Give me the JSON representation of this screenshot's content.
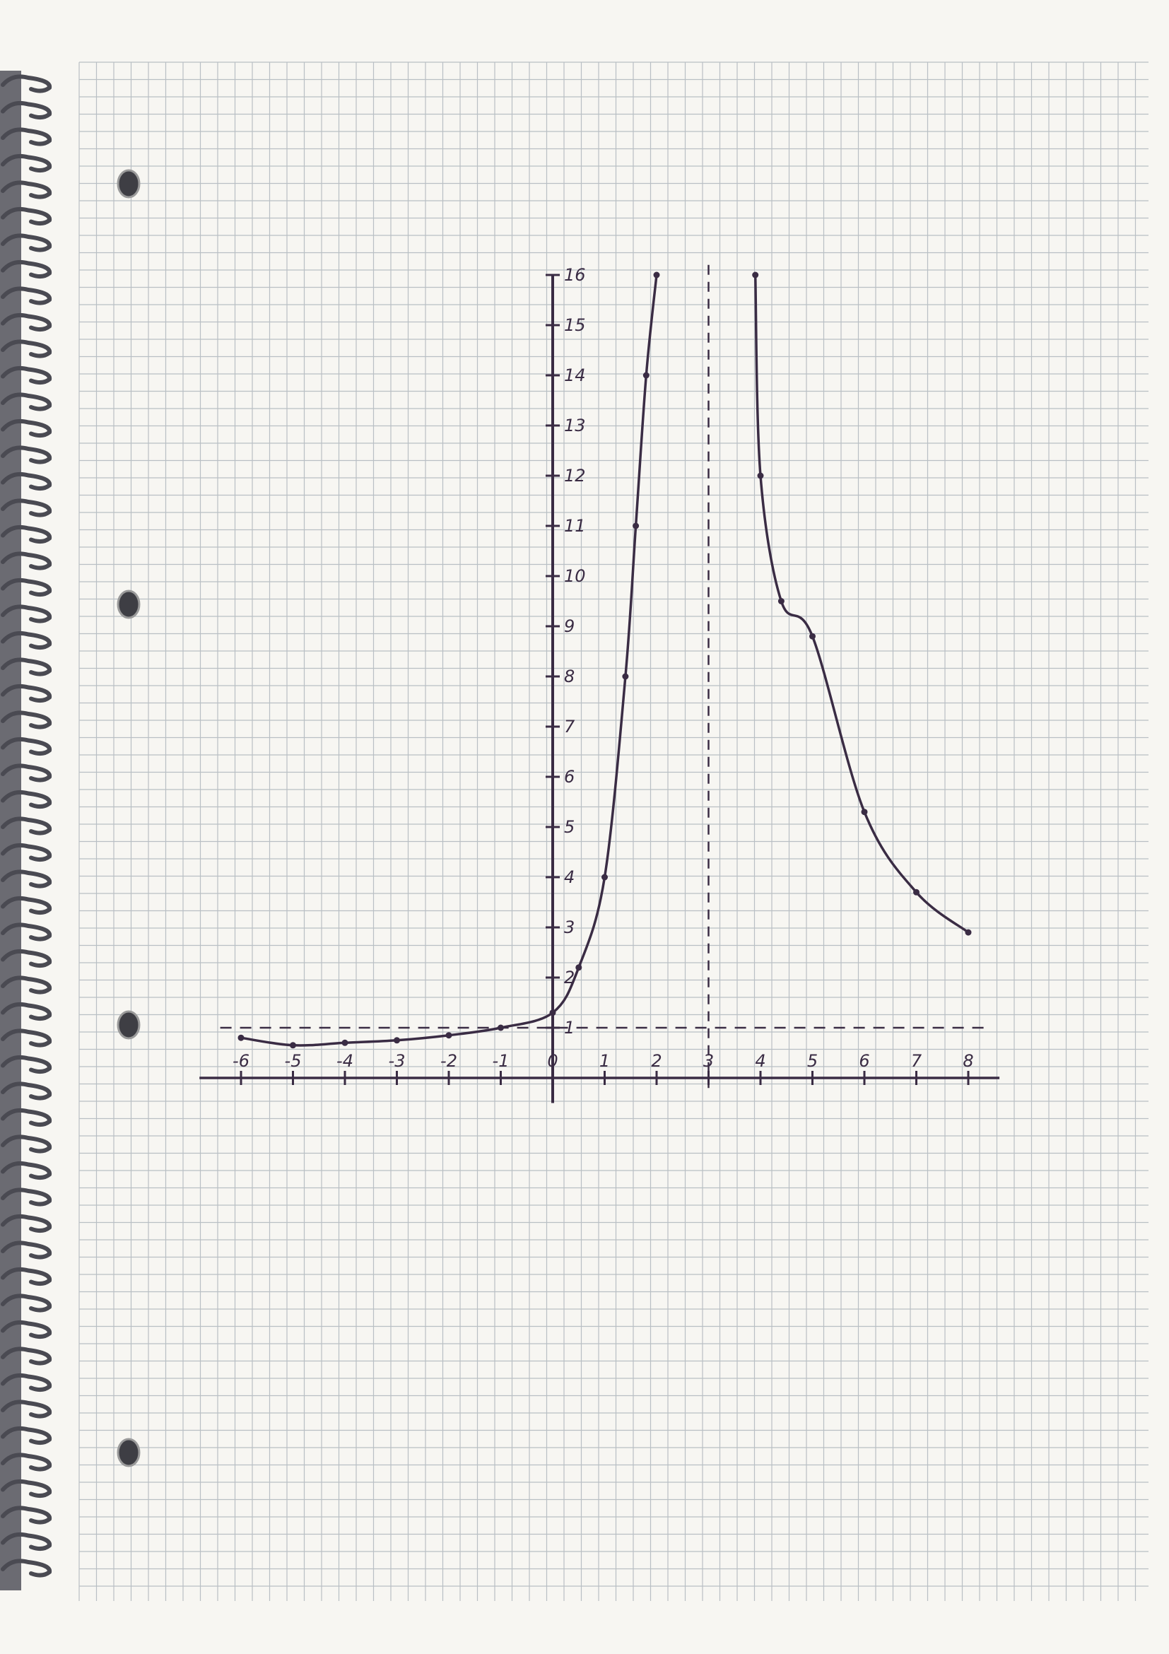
{
  "colors": {
    "paper": "#f7f6f2",
    "grid": "#b9bfc4",
    "ink": "#3a2c44",
    "spiral": "#4a4a52"
  },
  "chart_data": {
    "type": "line",
    "title": "",
    "xlabel": "",
    "ylabel": "",
    "grid": true,
    "xlim": [
      -6,
      8
    ],
    "ylim": [
      0,
      16
    ],
    "x_ticks": [
      "-6",
      "-5",
      "-4",
      "-3",
      "-2",
      "-1",
      "0",
      "1",
      "2",
      "3",
      "4",
      "5",
      "6",
      "7",
      "8"
    ],
    "x_tick_values": [
      -6,
      -5,
      -4,
      -3,
      -2,
      -1,
      0,
      1,
      2,
      3,
      4,
      5,
      6,
      7,
      8
    ],
    "y_ticks": [
      "1",
      "2",
      "3",
      "4",
      "5",
      "6",
      "7",
      "8",
      "9",
      "10",
      "11",
      "12",
      "13",
      "14",
      "15",
      "16"
    ],
    "y_tick_values": [
      1,
      2,
      3,
      4,
      5,
      6,
      7,
      8,
      9,
      10,
      11,
      12,
      13,
      14,
      15,
      16
    ],
    "asymptotes": {
      "vertical_x": 3,
      "horizontal_y": 1
    },
    "series": [
      {
        "x": [
          -6,
          -5,
          -4,
          -3,
          -2,
          -1,
          0,
          0.5,
          1,
          1.4,
          1.6,
          1.8,
          2
        ],
        "y": [
          0.8,
          0.65,
          0.7,
          0.75,
          0.85,
          1.0,
          1.3,
          2.2,
          4.0,
          8.0,
          11.0,
          14.0,
          16.0
        ]
      },
      {
        "x": [
          3.9,
          4.0,
          4.4,
          5.0,
          6.0,
          7.0,
          8.0
        ],
        "y": [
          16.0,
          12.0,
          9.5,
          8.8,
          5.3,
          3.7,
          2.9
        ]
      }
    ]
  }
}
